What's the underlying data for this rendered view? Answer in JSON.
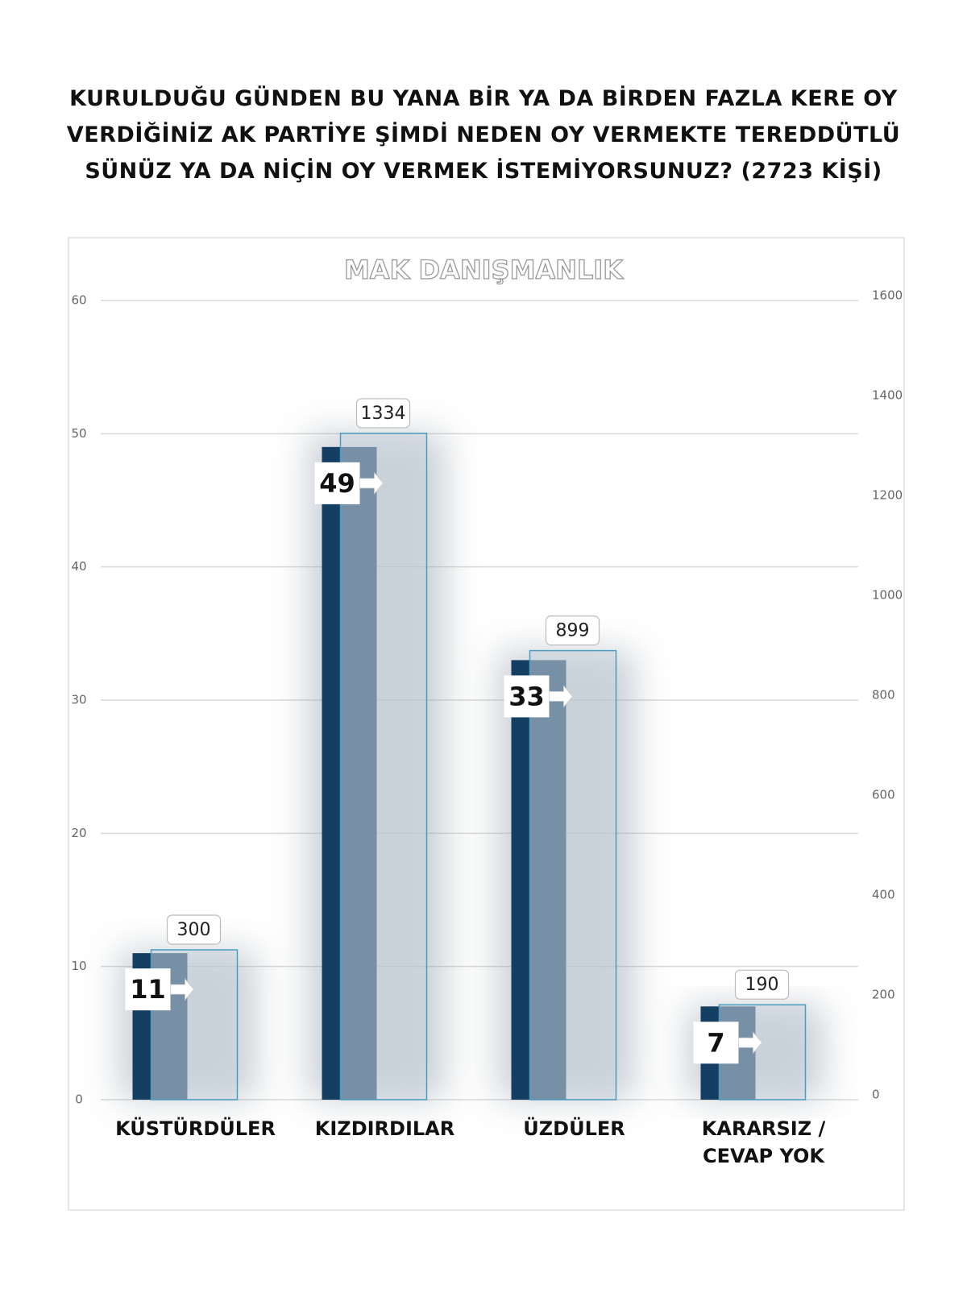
{
  "chart_data": {
    "type": "bar",
    "title": "KURULDUĞU GÜNDEN BU YANA BİR YA DA BİRDEN FAZLA KERE OY VERDİĞİNİZ AK PARTİYE ŞİMDİ NEDEN OY VERMEKTE TEREDDÜTLÜ SÜNÜZ YA DA NİÇİN OY VERMEK İSTEMİYORSUNUZ? (2723 KİŞİ)",
    "subtitle": "MAK DANIŞMANLIK",
    "categories": [
      "KÜSTÜRDÜLER",
      "KIZDIRDILAR",
      "ÜZDÜLER",
      "KARARSIZ / CEVAP YOK"
    ],
    "series": [
      {
        "color": "#143f63",
        "values": [
          11,
          49,
          33,
          7
        ]
      },
      {
        "color": "#c9d3dc",
        "values": [
          300,
          1334,
          899,
          190
        ],
        "axis": "y2"
      }
    ],
    "ylim": [
      0,
      60
    ],
    "yticks": [
      0,
      10,
      20,
      30,
      40,
      50,
      60
    ],
    "y2lim": [
      0,
      1600
    ],
    "y2ticks": [
      0,
      200,
      400,
      600,
      800,
      1000,
      1200,
      1400,
      1600
    ],
    "grid": true
  }
}
